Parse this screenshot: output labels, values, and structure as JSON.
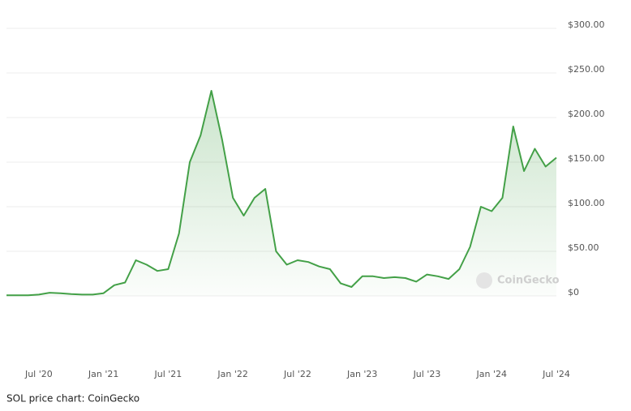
{
  "chart_data": {
    "type": "line",
    "categories": [
      null,
      null,
      null,
      "Jul '20",
      null,
      null,
      null,
      null,
      null,
      "Jan '21",
      null,
      null,
      null,
      null,
      null,
      "Jul '21",
      null,
      null,
      null,
      null,
      null,
      "Jan '22",
      null,
      null,
      null,
      null,
      null,
      "Jul '22",
      null,
      null,
      null,
      null,
      null,
      "Jan '23",
      null,
      null,
      null,
      null,
      null,
      "Jul '23",
      null,
      null,
      null,
      null,
      null,
      "Jan '24",
      null,
      null,
      null,
      null,
      null,
      "Jul '24"
    ],
    "series": [
      {
        "color": "#43a047",
        "values": [
          0.6,
          0.6,
          0.7,
          1.5,
          3.5,
          3,
          2,
          1.5,
          1.5,
          3,
          12,
          15,
          40,
          35,
          28,
          30,
          70,
          150,
          180,
          230,
          175,
          110,
          90,
          110,
          120,
          50,
          35,
          40,
          38,
          33,
          30,
          14,
          10,
          22,
          22,
          20,
          21,
          20,
          16,
          24,
          22,
          19,
          30,
          55,
          100,
          95,
          110,
          190,
          140,
          165,
          145,
          155
        ]
      }
    ],
    "ylim": [
      0,
      300
    ],
    "yticks": [
      {
        "value": 0,
        "label": "$0"
      },
      {
        "value": 50,
        "label": "$50.00"
      },
      {
        "value": 100,
        "label": "$100.00"
      },
      {
        "value": 150,
        "label": "$150.00"
      },
      {
        "value": 200,
        "label": "$200.00"
      },
      {
        "value": 250,
        "label": "$250.00"
      },
      {
        "value": 300,
        "label": "$300.00"
      }
    ],
    "grid": true,
    "watermark": "CoinGecko",
    "caption": "SOL price chart: CoinGecko"
  }
}
